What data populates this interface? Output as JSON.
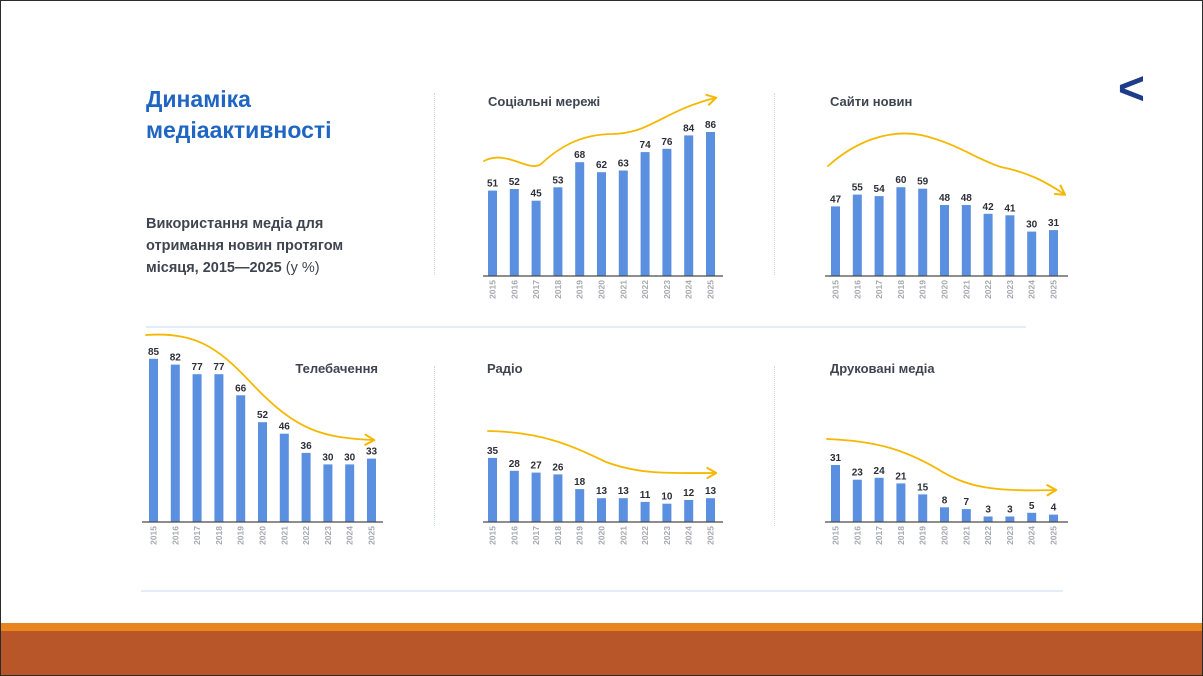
{
  "slide": {
    "title_line1": "Динаміка",
    "title_line2": "медіаактивності",
    "subtitle_line1": "Використання медіа для",
    "subtitle_line2": "отримання новин протягом",
    "subtitle_line3": "місяця, 2015—2025",
    "subtitle_unit": " (у %)",
    "nav_glyph": "<"
  },
  "colors": {
    "title": "#1f65c2",
    "bar": "#5b8fe0",
    "trend": "#f5b800",
    "axis": "#4a4a4a",
    "footer_band": "#b8562a",
    "footer_line": "#e8861d"
  },
  "chart_data": [
    {
      "type": "bar",
      "title": "Соціальні мережі",
      "categories": [
        "2015",
        "2016",
        "2017",
        "2018",
        "2019",
        "2020",
        "2021",
        "2022",
        "2023",
        "2024",
        "2025"
      ],
      "values": [
        51,
        52,
        45,
        53,
        68,
        62,
        63,
        74,
        76,
        84,
        86
      ],
      "ylim": [
        0,
        100
      ],
      "trend": "up"
    },
    {
      "type": "bar",
      "title": "Сайти новин",
      "categories": [
        "2015",
        "2016",
        "2017",
        "2018",
        "2019",
        "2020",
        "2021",
        "2022",
        "2023",
        "2024",
        "2025"
      ],
      "values": [
        47,
        55,
        54,
        60,
        59,
        48,
        48,
        42,
        41,
        30,
        31
      ],
      "ylim": [
        0,
        100
      ],
      "trend": "down"
    },
    {
      "type": "bar",
      "title": "Телебачення",
      "categories": [
        "2015",
        "2016",
        "2017",
        "2018",
        "2019",
        "2020",
        "2021",
        "2022",
        "2023",
        "2024",
        "2025"
      ],
      "values": [
        85,
        82,
        77,
        77,
        66,
        52,
        46,
        36,
        30,
        30,
        33
      ],
      "ylim": [
        0,
        100
      ],
      "trend": "down"
    },
    {
      "type": "bar",
      "title": "Радіо",
      "categories": [
        "2015",
        "2016",
        "2017",
        "2018",
        "2019",
        "2020",
        "2021",
        "2022",
        "2023",
        "2024",
        "2025"
      ],
      "values": [
        35,
        28,
        27,
        26,
        18,
        13,
        13,
        11,
        10,
        12,
        13
      ],
      "ylim": [
        0,
        100
      ],
      "trend": "down"
    },
    {
      "type": "bar",
      "title": "Друковані медіа",
      "categories": [
        "2015",
        "2016",
        "2017",
        "2018",
        "2019",
        "2020",
        "2021",
        "2022",
        "2023",
        "2024",
        "2025"
      ],
      "values": [
        31,
        23,
        24,
        21,
        15,
        8,
        7,
        3,
        3,
        5,
        4
      ],
      "ylim": [
        0,
        100
      ],
      "trend": "down"
    }
  ]
}
